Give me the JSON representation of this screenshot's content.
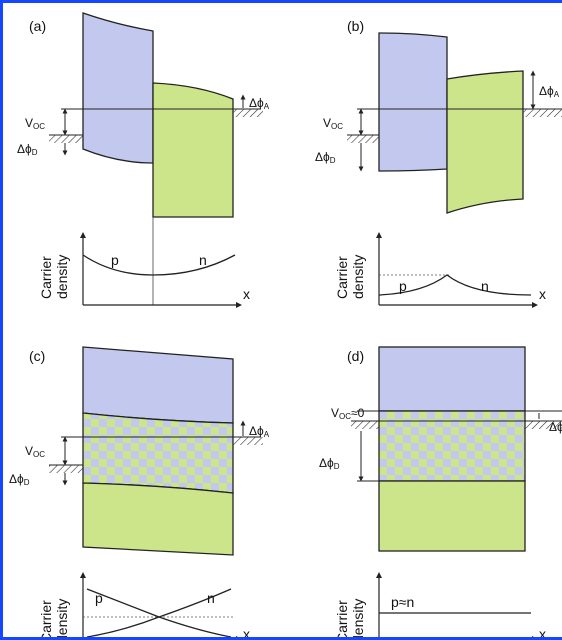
{
  "panels": {
    "a": {
      "label": "(a)",
      "voc": "V",
      "voc_sub": "OC",
      "dphiA": "Δϕ",
      "dphiA_sub": "A",
      "dphiD": "Δϕ",
      "dphiD_sub": "D",
      "carrier_line1": "Carrier",
      "carrier_line2": "density",
      "p": "p",
      "n": "n",
      "x": "x"
    },
    "b": {
      "label": "(b)",
      "voc": "V",
      "voc_sub": "OC",
      "dphiA": "Δϕ",
      "dphiA_sub": "A",
      "dphiD": "Δϕ",
      "dphiD_sub": "D",
      "carrier_line1": "Carrier",
      "carrier_line2": "density",
      "p": "p",
      "n": "n",
      "x": "x"
    },
    "c": {
      "label": "(c)",
      "voc": "V",
      "voc_sub": "OC",
      "dphiA": "Δϕ",
      "dphiA_sub": "A",
      "dphiD": "Δϕ",
      "dphiD_sub": "D",
      "carrier_line1": "Carrier",
      "carrier_line2": "density",
      "p": "p",
      "n": "n",
      "x": "x"
    },
    "d": {
      "label": "(d)",
      "voc": "V",
      "voc_sub": "OC",
      "voc_suffix": "≈0",
      "dphiA": "Δϕ",
      "dphiD": "Δϕ",
      "dphiD_sub": "D",
      "carrier_line1": "Carrier",
      "carrier_line2": "density",
      "pn": "p≈n",
      "x": "x"
    }
  },
  "colors": {
    "blue_fill": "#c3c9ee",
    "green_fill": "#cde58a",
    "frame": "#1646ff",
    "line": "#222222"
  }
}
